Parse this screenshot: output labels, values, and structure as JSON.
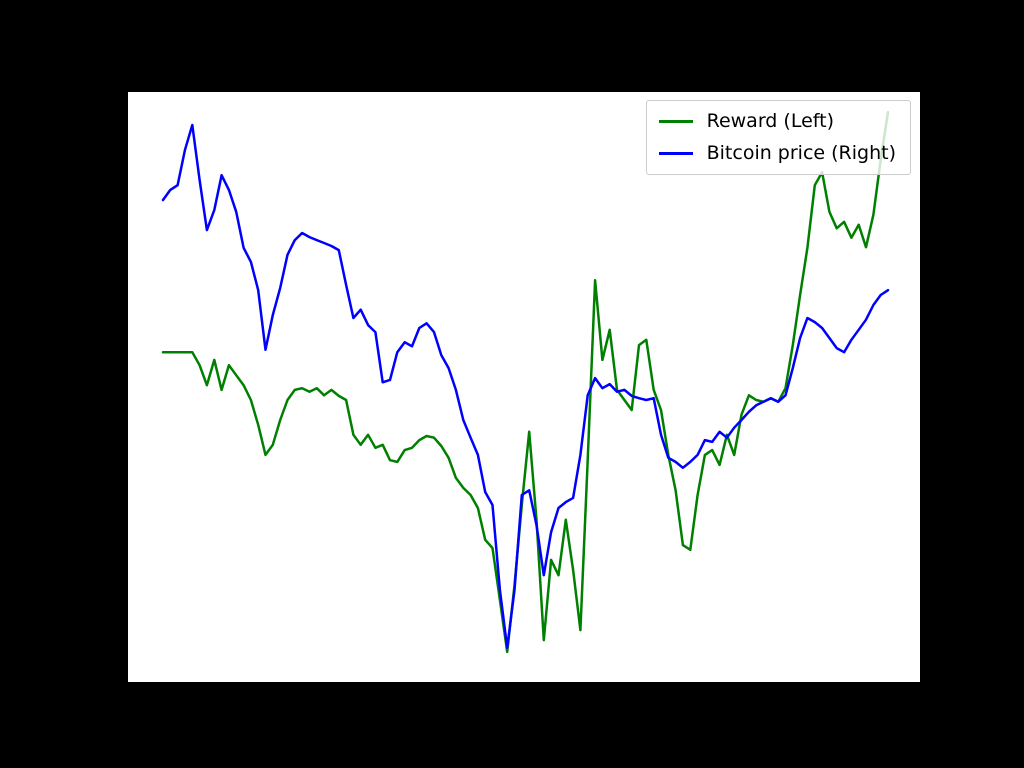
{
  "figure": {
    "background_color": "#000000",
    "axes_background_color": "#ffffff"
  },
  "legend": {
    "position": "upper right",
    "border_color": "#cccccc"
  },
  "chart_data": {
    "type": "line",
    "title": "",
    "xlabel": "",
    "ylabel": "",
    "xticks": [],
    "yticks": [],
    "grid": false,
    "legend_position": "upper right",
    "x_unit": "index",
    "y_unit": "normalized plot height (no axis tick labels visible)",
    "ylim": [
      0,
      1
    ],
    "series": [
      {
        "name": "Reward (Left)",
        "color": "#008000",
        "axis": "left",
        "values": [
          0.559,
          0.559,
          0.559,
          0.559,
          0.559,
          0.537,
          0.503,
          0.546,
          0.495,
          0.537,
          0.52,
          0.503,
          0.478,
          0.436,
          0.385,
          0.402,
          0.444,
          0.478,
          0.495,
          0.498,
          0.492,
          0.498,
          0.486,
          0.495,
          0.485,
          0.478,
          0.419,
          0.402,
          0.419,
          0.397,
          0.402,
          0.376,
          0.373,
          0.393,
          0.397,
          0.41,
          0.417,
          0.414,
          0.4,
          0.38,
          0.346,
          0.329,
          0.317,
          0.295,
          0.241,
          0.227,
          0.139,
          0.051,
          0.164,
          0.3,
          0.424,
          0.275,
          0.071,
          0.207,
          0.181,
          0.275,
          0.19,
          0.088,
          0.376,
          0.681,
          0.546,
          0.597,
          0.495,
          0.478,
          0.461,
          0.571,
          0.58,
          0.495,
          0.461,
          0.385,
          0.325,
          0.232,
          0.224,
          0.317,
          0.385,
          0.393,
          0.368,
          0.419,
          0.385,
          0.453,
          0.486,
          0.478,
          0.475,
          0.481,
          0.475,
          0.498,
          0.571,
          0.656,
          0.736,
          0.842,
          0.864,
          0.797,
          0.769,
          0.78,
          0.753,
          0.775,
          0.737,
          0.792,
          0.885,
          0.966
        ]
      },
      {
        "name": "Bitcoin price (Right)",
        "color": "#0000ff",
        "axis": "right",
        "values": [
          0.817,
          0.834,
          0.842,
          0.902,
          0.944,
          0.851,
          0.766,
          0.8,
          0.859,
          0.834,
          0.797,
          0.736,
          0.712,
          0.664,
          0.563,
          0.622,
          0.668,
          0.724,
          0.749,
          0.761,
          0.754,
          0.749,
          0.744,
          0.739,
          0.732,
          0.673,
          0.617,
          0.631,
          0.605,
          0.593,
          0.508,
          0.512,
          0.559,
          0.576,
          0.569,
          0.6,
          0.608,
          0.593,
          0.554,
          0.532,
          0.495,
          0.444,
          0.414,
          0.385,
          0.322,
          0.3,
          0.156,
          0.058,
          0.156,
          0.317,
          0.325,
          0.266,
          0.181,
          0.254,
          0.295,
          0.305,
          0.312,
          0.385,
          0.486,
          0.515,
          0.498,
          0.505,
          0.492,
          0.495,
          0.485,
          0.481,
          0.478,
          0.481,
          0.419,
          0.38,
          0.373,
          0.363,
          0.373,
          0.385,
          0.41,
          0.407,
          0.424,
          0.414,
          0.431,
          0.444,
          0.458,
          0.469,
          0.475,
          0.481,
          0.475,
          0.486,
          0.532,
          0.583,
          0.617,
          0.61,
          0.6,
          0.583,
          0.566,
          0.559,
          0.58,
          0.597,
          0.614,
          0.639,
          0.656,
          0.664
        ]
      }
    ]
  }
}
